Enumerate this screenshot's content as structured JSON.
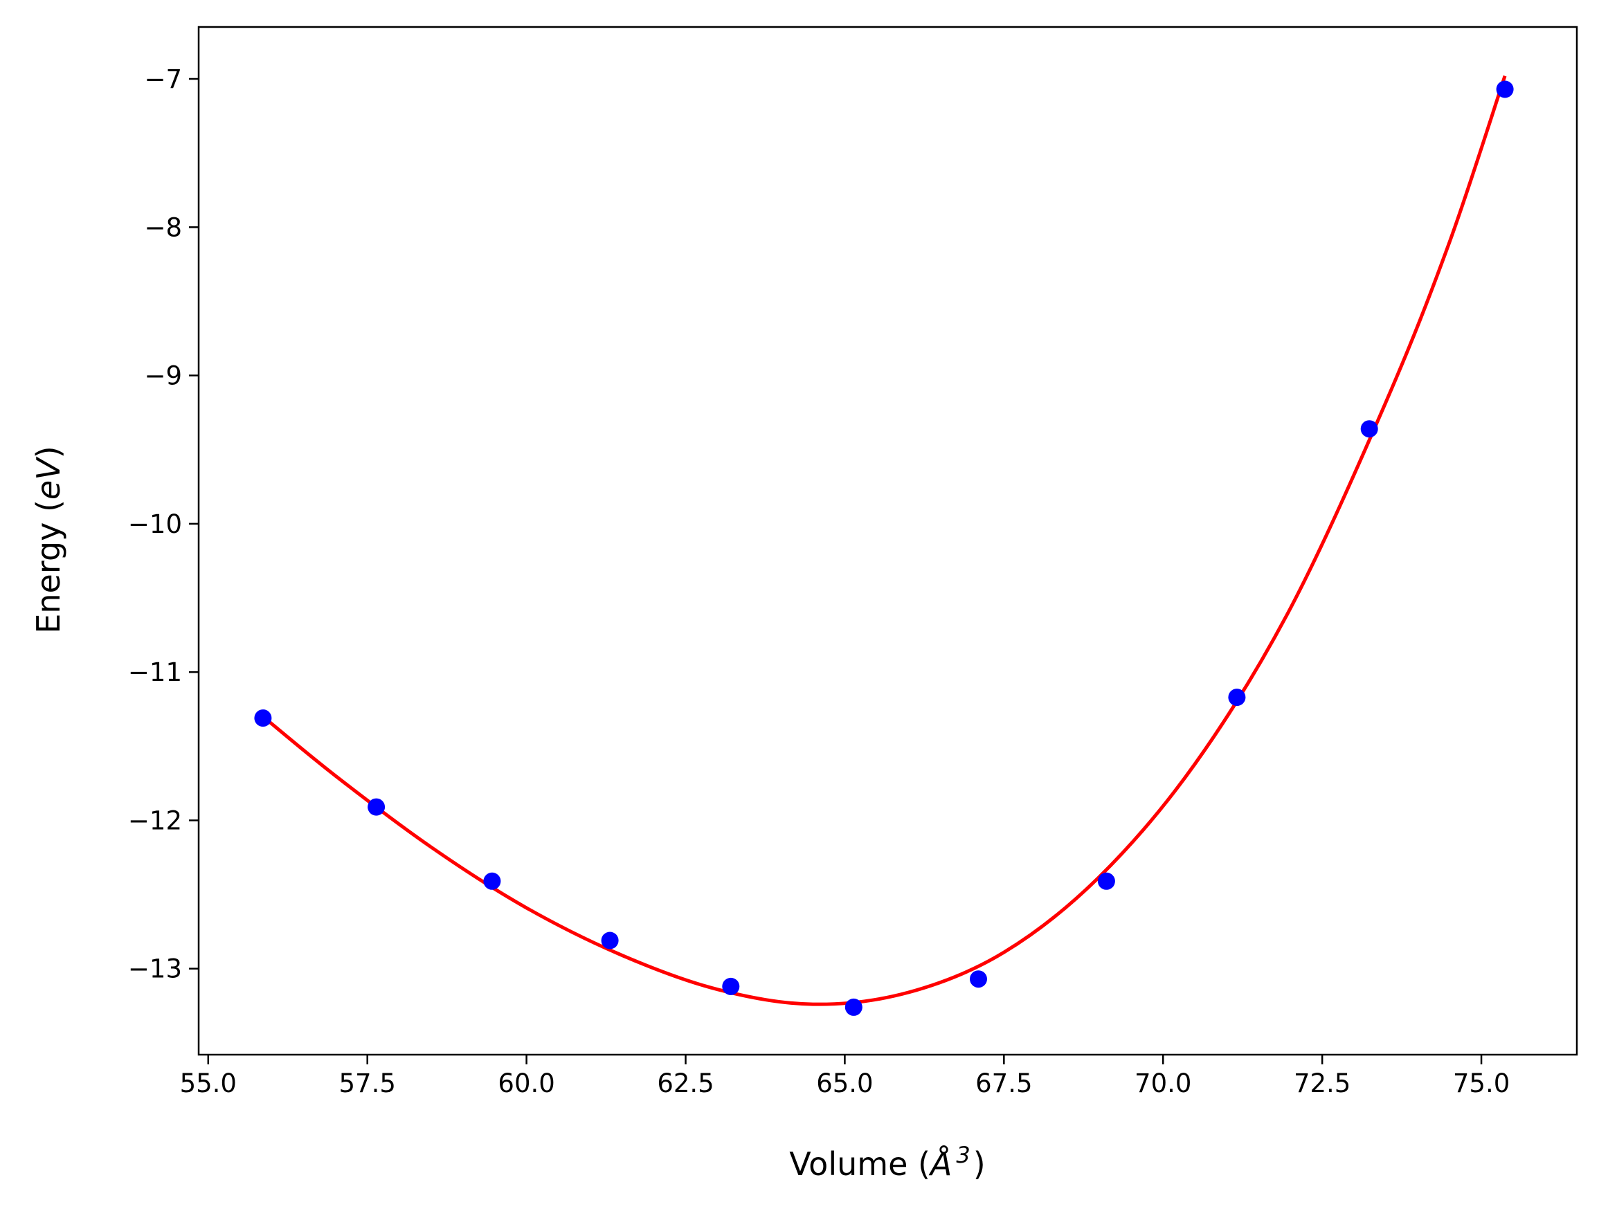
{
  "chart_data": {
    "type": "scatter",
    "title": "",
    "xlabel_prefix": "Volume (",
    "xlabel_unit": "Å",
    "xlabel_sup": "3",
    "xlabel_suffix": ")",
    "ylabel_prefix": "Energy (",
    "ylabel_unit": "eV",
    "ylabel_suffix": ")",
    "xlim": [
      54.85,
      76.5
    ],
    "ylim": [
      -13.58,
      -6.65
    ],
    "grid": false,
    "legend": "none",
    "x_ticks": [
      55.0,
      57.5,
      60.0,
      62.5,
      65.0,
      67.5,
      70.0,
      72.5,
      75.0
    ],
    "x_tick_labels": [
      "55.0",
      "57.5",
      "60.0",
      "62.5",
      "65.0",
      "67.5",
      "70.0",
      "72.5",
      "75.0"
    ],
    "y_ticks": [
      -7,
      -8,
      -9,
      -10,
      -11,
      -12,
      -13
    ],
    "y_tick_labels": [
      "−7",
      "−8",
      "−9",
      "−10",
      "−11",
      "−12",
      "−13"
    ],
    "series": [
      {
        "kind": "points",
        "color": "#0000ff",
        "x": [
          55.86,
          57.64,
          59.46,
          61.31,
          63.21,
          65.14,
          67.1,
          69.11,
          71.16,
          73.24,
          75.37
        ],
        "y": [
          -11.31,
          -11.91,
          -12.41,
          -12.81,
          -13.12,
          -13.26,
          -13.07,
          -12.41,
          -11.17,
          -9.36,
          -7.07
        ]
      },
      {
        "kind": "fit-curve",
        "color": "#ff0000",
        "x": [
          55.86,
          57.0,
          58.5,
          60.0,
          61.5,
          63.0,
          64.5,
          66.0,
          67.5,
          69.0,
          70.5,
          72.0,
          73.5,
          74.5,
          75.37
        ],
        "y": [
          -11.3,
          -11.7,
          -12.18,
          -12.59,
          -12.91,
          -13.14,
          -13.24,
          -13.16,
          -12.89,
          -12.38,
          -11.62,
          -10.57,
          -9.18,
          -8.1,
          -6.98
        ]
      }
    ]
  },
  "style": {
    "frame_color": "#000000",
    "background": "#ffffff"
  }
}
